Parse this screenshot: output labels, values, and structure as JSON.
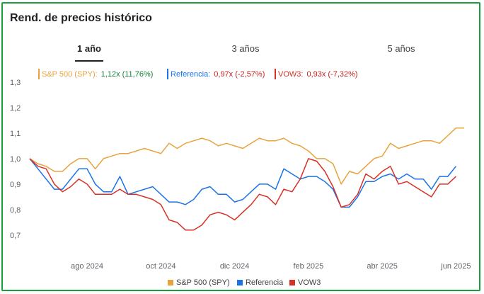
{
  "title": "Rend. de precios histórico",
  "tabs": [
    {
      "label": "1 año",
      "active": true
    },
    {
      "label": "3 años",
      "active": false
    },
    {
      "label": "5 años",
      "active": false
    }
  ],
  "legend_top": [
    {
      "name": "S&P 500 (SPY):",
      "value": "1,12x",
      "change": "(11,76%)",
      "color": "#e8a33d",
      "change_color": "#188038"
    },
    {
      "name": "Referencia:",
      "value": "0,97x",
      "change": "(-2,57%)",
      "color": "#1a73e8",
      "change_color": "#c5221f"
    },
    {
      "name": "VOW3:",
      "value": "0,93x",
      "change": "(-7,32%)",
      "color": "#d93025",
      "change_color": "#c5221f"
    }
  ],
  "legend_bottom": [
    {
      "name": "S&P 500 (SPY)",
      "color": "#e8a33d"
    },
    {
      "name": "Referencia",
      "color": "#1a73e8"
    },
    {
      "name": "VOW3",
      "color": "#d93025"
    }
  ],
  "chart_data": {
    "type": "line",
    "ylim": [
      0.65,
      1.33
    ],
    "yticks": [
      "1,3",
      "1,2",
      "1,1",
      "1,0",
      "0,9",
      "0,8",
      "0,7"
    ],
    "ytick_values": [
      1.3,
      1.2,
      1.1,
      1.0,
      0.9,
      0.8,
      0.7
    ],
    "xticks": [
      "ago 2024",
      "oct 2024",
      "dic 2024",
      "feb 2025",
      "abr 2025",
      "jun 2025"
    ],
    "xtick_positions": [
      7,
      16,
      25,
      34,
      43,
      52
    ],
    "series": [
      {
        "name": "S&P 500 (SPY)",
        "color": "#e8a33d",
        "values": [
          1.0,
          0.98,
          0.97,
          0.95,
          0.95,
          0.98,
          1.0,
          1.0,
          0.96,
          1.0,
          1.01,
          1.02,
          1.02,
          1.03,
          1.04,
          1.03,
          1.02,
          1.06,
          1.04,
          1.06,
          1.07,
          1.08,
          1.07,
          1.05,
          1.06,
          1.05,
          1.04,
          1.06,
          1.08,
          1.07,
          1.07,
          1.08,
          1.06,
          1.05,
          1.03,
          1.0,
          1.0,
          0.98,
          0.9,
          0.95,
          0.94,
          0.97,
          1.0,
          1.01,
          1.06,
          1.04,
          1.05,
          1.06,
          1.07,
          1.07,
          1.06,
          1.09,
          1.12,
          1.12
        ]
      },
      {
        "name": "Referencia",
        "color": "#1a73e8",
        "values": [
          1.0,
          0.96,
          0.92,
          0.88,
          0.88,
          0.92,
          0.96,
          0.96,
          0.9,
          0.87,
          0.87,
          0.93,
          0.86,
          0.87,
          0.88,
          0.89,
          0.86,
          0.83,
          0.83,
          0.82,
          0.84,
          0.88,
          0.89,
          0.86,
          0.86,
          0.83,
          0.84,
          0.87,
          0.9,
          0.9,
          0.88,
          0.96,
          0.94,
          0.92,
          0.93,
          0.93,
          0.91,
          0.88,
          0.81,
          0.81,
          0.85,
          0.91,
          0.91,
          0.93,
          0.94,
          0.92,
          0.94,
          0.92,
          0.92,
          0.88,
          0.93,
          0.93,
          0.97
        ]
      },
      {
        "name": "VOW3",
        "color": "#d93025",
        "values": [
          1.0,
          0.97,
          0.96,
          0.9,
          0.87,
          0.89,
          0.92,
          0.9,
          0.86,
          0.86,
          0.86,
          0.88,
          0.86,
          0.86,
          0.85,
          0.84,
          0.82,
          0.76,
          0.75,
          0.72,
          0.72,
          0.74,
          0.78,
          0.79,
          0.78,
          0.76,
          0.79,
          0.82,
          0.86,
          0.85,
          0.82,
          0.88,
          0.87,
          0.92,
          1.0,
          0.99,
          0.95,
          0.89,
          0.81,
          0.82,
          0.86,
          0.94,
          0.92,
          0.95,
          0.97,
          0.9,
          0.91,
          0.89,
          0.87,
          0.85,
          0.9,
          0.9,
          0.93
        ]
      }
    ]
  }
}
